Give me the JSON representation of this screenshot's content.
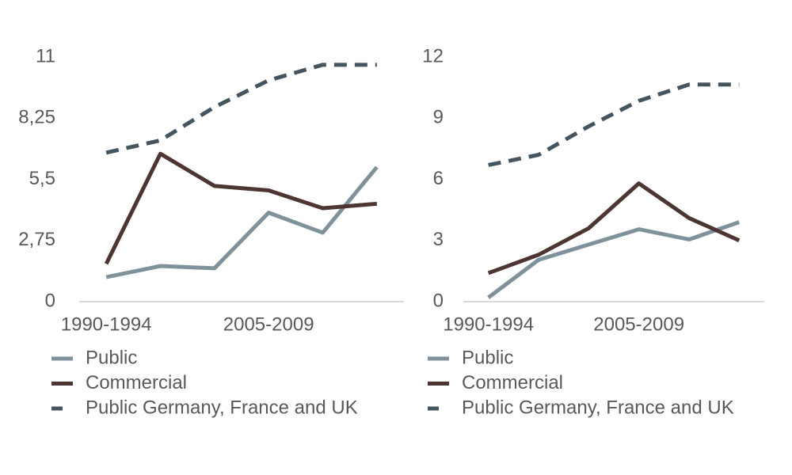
{
  "chart_data": [
    {
      "type": "line",
      "categories": [
        "1990-1994",
        null,
        null,
        "2005-2009",
        null,
        null
      ],
      "ylim": [
        0,
        11
      ],
      "yticks": [
        0,
        {
          "value": 2.75,
          "label": "2,75"
        },
        {
          "value": 5.5,
          "label": "5,5"
        },
        {
          "value": 8.25,
          "label": "8,25"
        },
        11
      ],
      "series": [
        {
          "name": "Public",
          "color": "#7f929c",
          "values": [
            1.1,
            1.6,
            1.5,
            4.0,
            3.1,
            6.05
          ]
        },
        {
          "name": "Commercial",
          "color": "#4d3531",
          "values": [
            1.7,
            6.65,
            5.2,
            5.0,
            4.2,
            4.4
          ]
        },
        {
          "name": "Public Germany, France and UK",
          "color": "#455560",
          "dashed": true,
          "values": [
            6.7,
            7.25,
            8.75,
            9.95,
            10.65,
            10.65
          ]
        }
      ]
    },
    {
      "type": "line",
      "categories": [
        "1990-1994",
        null,
        null,
        "2005-2009",
        null,
        null
      ],
      "ylim": [
        0,
        12
      ],
      "yticks": [
        0,
        3,
        6,
        9,
        12
      ],
      "series": [
        {
          "name": "Public",
          "color": "#7f929c",
          "values": [
            0.2,
            2.05,
            2.8,
            3.55,
            3.05,
            3.9
          ]
        },
        {
          "name": "Commercial",
          "color": "#4d3531",
          "values": [
            1.4,
            2.3,
            3.6,
            5.8,
            4.1,
            3.0
          ]
        },
        {
          "name": "Public Germany, France and UK",
          "color": "#455560",
          "dashed": true,
          "values": [
            6.7,
            7.2,
            8.6,
            9.85,
            10.65,
            10.65
          ]
        }
      ]
    }
  ]
}
